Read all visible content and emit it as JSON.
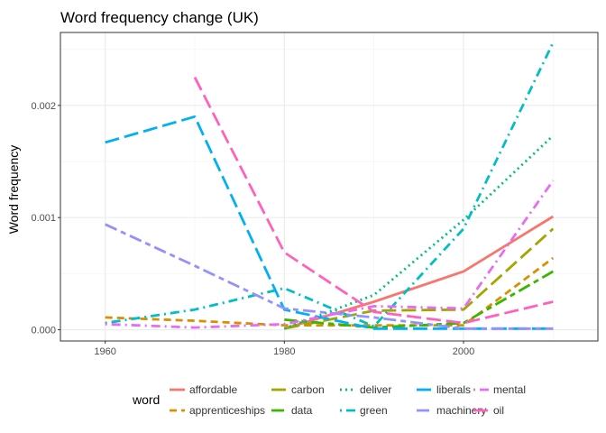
{
  "chart_data": {
    "type": "line",
    "title": "Word frequency change (UK)",
    "xlabel": "",
    "ylabel": "Word frequency",
    "xlim": [
      1955,
      2015
    ],
    "ylim": [
      -0.0001,
      0.00265
    ],
    "x_ticks": [
      1960,
      1980,
      2000
    ],
    "y_ticks": [
      0.0,
      0.001,
      0.002
    ],
    "y_tick_labels": [
      "0.000",
      "0.001",
      "0.002"
    ],
    "grid": true,
    "legend_title": "word",
    "legend_position": "bottom",
    "series": [
      {
        "name": "affordable",
        "color": "#F8766D",
        "dash": "solid",
        "x": [
          1980,
          1990,
          2000,
          2010
        ],
        "y": [
          1e-05,
          0.00025,
          0.00052,
          0.00101
        ]
      },
      {
        "name": "apprenticeships",
        "color": "#D89000",
        "dash": "dashed",
        "x": [
          1960,
          1970,
          1980,
          1990,
          2000,
          2010
        ],
        "y": [
          0.00011,
          8e-05,
          4e-05,
          4e-05,
          4e-05,
          0.00064
        ]
      },
      {
        "name": "carbon",
        "color": "#A3A500",
        "dash": "longdash",
        "x": [
          1980,
          1990,
          2000,
          2010
        ],
        "y": [
          1e-05,
          0.00017,
          0.00018,
          0.0009
        ]
      },
      {
        "name": "data",
        "color": "#39B600",
        "dash": "twodash",
        "x": [
          1980,
          1990,
          2000,
          2010
        ],
        "y": [
          9e-05,
          2e-05,
          6e-05,
          0.00052
        ]
      },
      {
        "name": "deliver",
        "color": "#00BF7D",
        "dash": "dotted",
        "x": [
          1980,
          1990,
          2000,
          2010
        ],
        "y": [
          1e-05,
          0.00031,
          0.00098,
          0.00173
        ]
      },
      {
        "name": "green",
        "color": "#00BFC4",
        "dash": "dotdash",
        "x": [
          1960,
          1970,
          1980,
          1990,
          2000,
          2010
        ],
        "y": [
          6e-05,
          0.00018,
          0.00037,
          3e-05,
          0.0009,
          0.00256
        ]
      },
      {
        "name": "liberals",
        "color": "#00B0F6",
        "dash": "longdash",
        "x": [
          1960,
          1970,
          1980,
          1990,
          2000,
          2010
        ],
        "y": [
          0.00167,
          0.0019,
          0.00018,
          1e-05,
          1e-05,
          1e-05
        ]
      },
      {
        "name": "machinery",
        "color": "#9590FF",
        "dash": "twodash",
        "x": [
          1960,
          1970,
          1980,
          1990,
          2000,
          2010
        ],
        "y": [
          0.00094,
          0.00057,
          0.00019,
          0.00011,
          1e-05,
          1e-05
        ]
      },
      {
        "name": "mental",
        "color": "#E76BF3",
        "dash": "dotdash",
        "x": [
          1960,
          1970,
          1980,
          1990,
          2000,
          2010
        ],
        "y": [
          5e-05,
          2e-05,
          5e-05,
          0.00021,
          0.00019,
          0.00133
        ]
      },
      {
        "name": "oil",
        "color": "#FF62BC",
        "dash": "longdash",
        "x": [
          1970,
          1980,
          1990,
          2000,
          2010
        ],
        "y": [
          0.00225,
          0.00069,
          0.00016,
          6e-05,
          0.00025
        ]
      }
    ]
  }
}
